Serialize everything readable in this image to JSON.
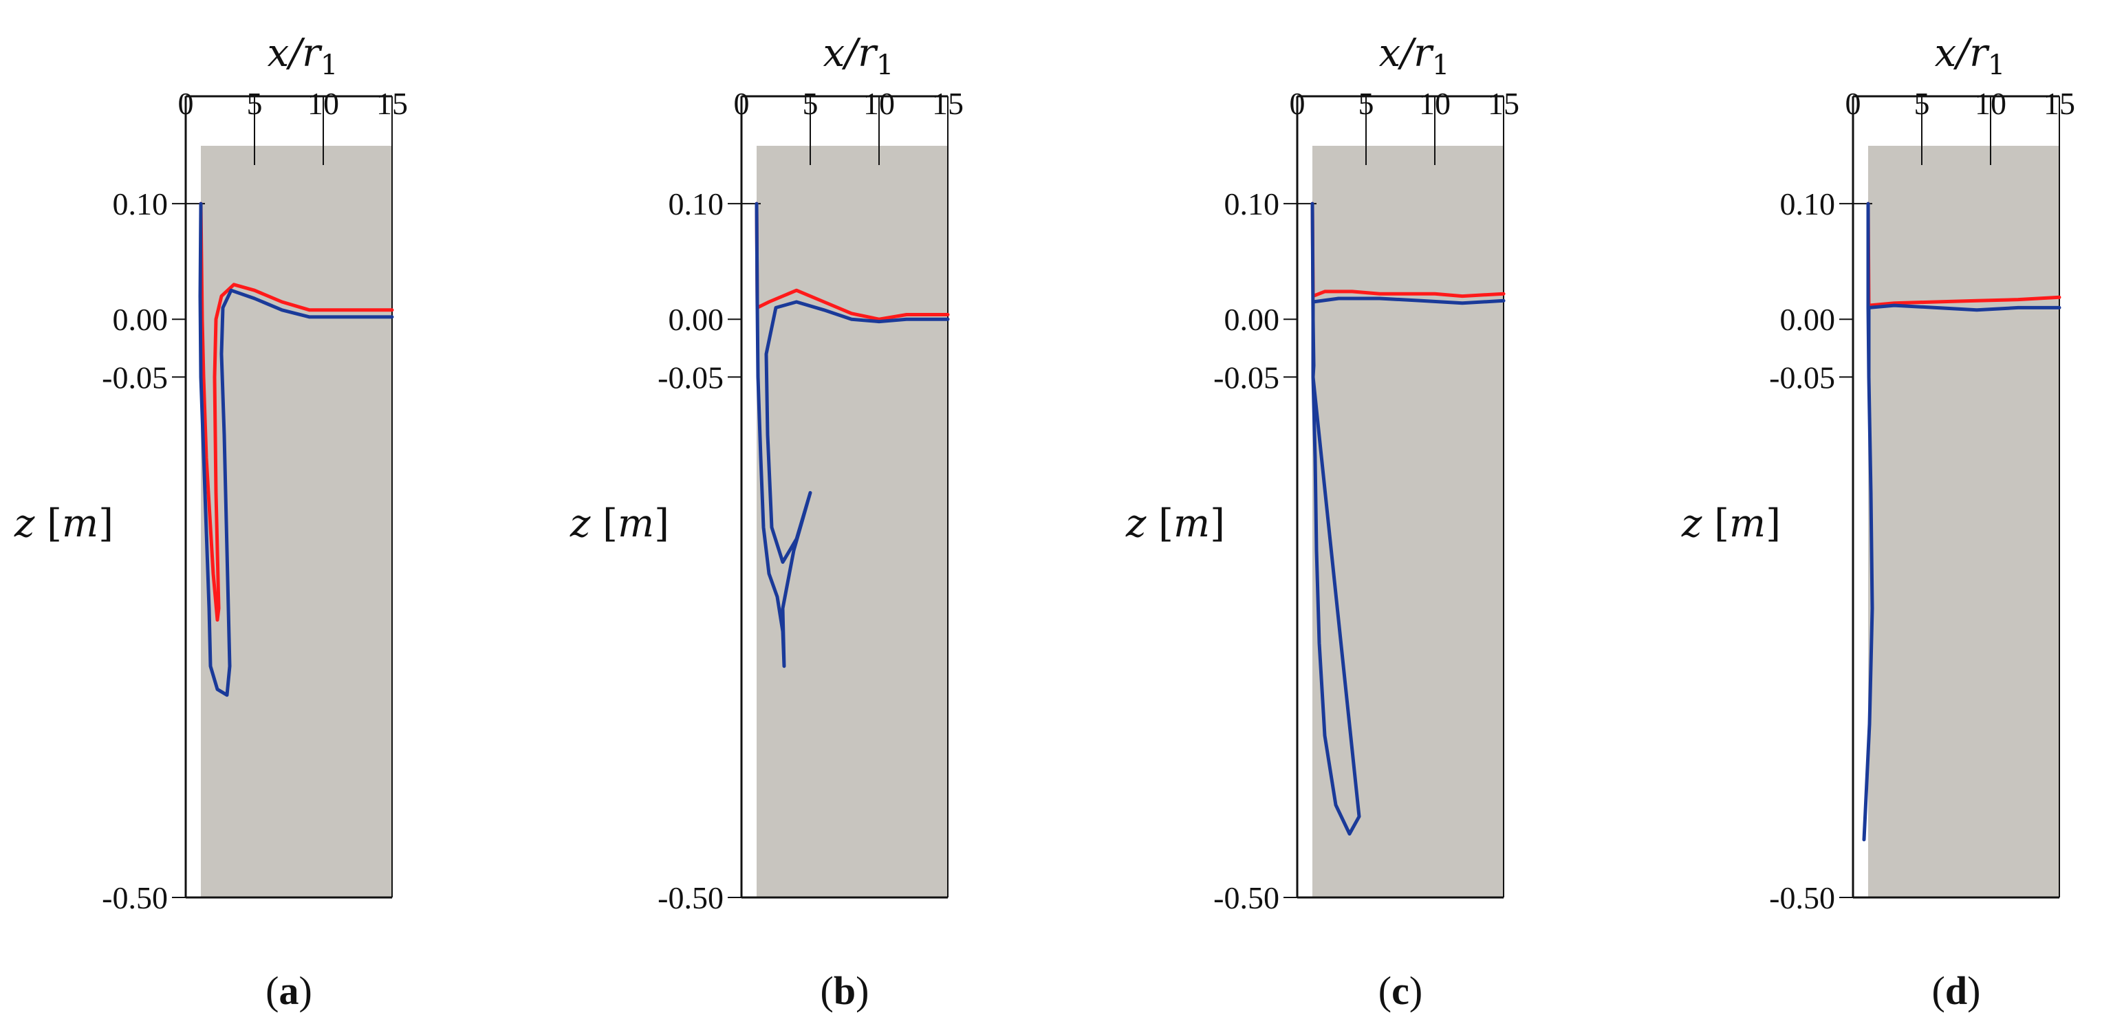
{
  "chart_data": [
    {
      "type": "line",
      "panel": "a",
      "caption": "(a)",
      "xlabel": "x/r1",
      "ylabel": "z [m]",
      "xticks": [
        "0",
        "5",
        "10",
        "15"
      ],
      "yticks": [
        "0.10",
        "0.00",
        "-0.05",
        "-0.50"
      ],
      "xlim": [
        0,
        15
      ],
      "ylim": [
        -0.5,
        0.15
      ],
      "background_color": "#c8c5bf",
      "series": [
        {
          "color": "#ff1a1a",
          "points": [
            [
              1.1,
              0.1
            ],
            [
              1.2,
              0.0
            ],
            [
              1.3,
              -0.05
            ],
            [
              1.5,
              -0.12
            ],
            [
              1.8,
              -0.18
            ],
            [
              2.0,
              -0.22
            ],
            [
              2.3,
              -0.26
            ],
            [
              2.4,
              -0.25
            ],
            [
              2.2,
              -0.15
            ],
            [
              2.1,
              -0.05
            ],
            [
              2.2,
              0.0
            ],
            [
              2.6,
              0.02
            ],
            [
              3.5,
              0.03
            ],
            [
              5,
              0.025
            ],
            [
              7,
              0.015
            ],
            [
              9,
              0.008
            ],
            [
              12,
              0.008
            ],
            [
              15,
              0.008
            ]
          ]
        },
        {
          "color": "#1a3a99",
          "points": [
            [
              1.1,
              0.1
            ],
            [
              1.05,
              0.02
            ],
            [
              1.1,
              -0.05
            ],
            [
              1.4,
              -0.15
            ],
            [
              1.7,
              -0.25
            ],
            [
              1.8,
              -0.3
            ],
            [
              2.3,
              -0.32
            ],
            [
              3.0,
              -0.325
            ],
            [
              3.2,
              -0.3
            ],
            [
              3.0,
              -0.2
            ],
            [
              2.8,
              -0.1
            ],
            [
              2.6,
              -0.03
            ],
            [
              2.7,
              0.01
            ],
            [
              3.3,
              0.025
            ],
            [
              5,
              0.018
            ],
            [
              7,
              0.008
            ],
            [
              9,
              0.002
            ],
            [
              12,
              0.002
            ],
            [
              15,
              0.002
            ]
          ]
        }
      ]
    },
    {
      "type": "line",
      "panel": "b",
      "caption": "(b)",
      "xlabel": "x/r1",
      "ylabel": "z [m]",
      "xticks": [
        "0",
        "5",
        "10",
        "15"
      ],
      "yticks": [
        "0.10",
        "0.00",
        "-0.05",
        "-0.50"
      ],
      "xlim": [
        0,
        15
      ],
      "ylim": [
        -0.5,
        0.15
      ],
      "background_color": "#c8c5bf",
      "series": [
        {
          "color": "#ff1a1a",
          "points": [
            [
              1.1,
              0.1
            ],
            [
              1.15,
              0.01
            ],
            [
              2,
              0.015
            ],
            [
              4,
              0.025
            ],
            [
              6,
              0.015
            ],
            [
              8,
              0.005
            ],
            [
              10,
              0.0
            ],
            [
              12,
              0.004
            ],
            [
              15,
              0.004
            ]
          ]
        },
        {
          "color": "#1a3a99",
          "points": [
            [
              1.1,
              0.1
            ],
            [
              1.15,
              0.01
            ],
            [
              1.2,
              -0.05
            ],
            [
              1.4,
              -0.12
            ],
            [
              1.6,
              -0.18
            ],
            [
              2.0,
              -0.22
            ],
            [
              2.6,
              -0.24
            ],
            [
              3.0,
              -0.27
            ],
            [
              3.1,
              -0.3
            ],
            [
              3.0,
              -0.25
            ],
            [
              3.8,
              -0.2
            ],
            [
              5,
              -0.15
            ],
            [
              4,
              -0.19
            ],
            [
              3,
              -0.21
            ],
            [
              2.2,
              -0.18
            ],
            [
              1.9,
              -0.1
            ],
            [
              1.8,
              -0.03
            ],
            [
              2.5,
              0.01
            ],
            [
              4,
              0.015
            ],
            [
              6,
              0.008
            ],
            [
              8,
              0.0
            ],
            [
              10,
              -0.002
            ],
            [
              12,
              0.0
            ],
            [
              15,
              0.0
            ]
          ]
        }
      ]
    },
    {
      "type": "line",
      "panel": "c",
      "caption": "(c)",
      "xlabel": "x/r1",
      "ylabel": "z [m]",
      "xticks": [
        "0",
        "5",
        "10",
        "15"
      ],
      "yticks": [
        "0.10",
        "0.00",
        "-0.05",
        "-0.50"
      ],
      "xlim": [
        0,
        15
      ],
      "ylim": [
        -0.5,
        0.15
      ],
      "background_color": "#c8c5bf",
      "series": [
        {
          "color": "#ff1a1a",
          "points": [
            [
              1.1,
              0.1
            ],
            [
              1.15,
              0.02
            ],
            [
              2,
              0.024
            ],
            [
              4,
              0.024
            ],
            [
              6,
              0.022
            ],
            [
              8,
              0.022
            ],
            [
              10,
              0.022
            ],
            [
              12,
              0.02
            ],
            [
              15,
              0.022
            ]
          ]
        },
        {
          "color": "#1a3a99",
          "points": [
            [
              1.1,
              0.1
            ],
            [
              1.15,
              0.0
            ],
            [
              1.2,
              -0.04
            ],
            [
              1.15,
              -0.05
            ],
            [
              1.3,
              -0.12
            ],
            [
              1.4,
              -0.2
            ],
            [
              1.6,
              -0.28
            ],
            [
              2,
              -0.36
            ],
            [
              2.8,
              -0.42
            ],
            [
              3.8,
              -0.445
            ],
            [
              4.5,
              -0.43
            ],
            [
              1.15,
              -0.05
            ],
            [
              1.15,
              0.015
            ],
            [
              3,
              0.018
            ],
            [
              6,
              0.018
            ],
            [
              9,
              0.016
            ],
            [
              12,
              0.014
            ],
            [
              15,
              0.016
            ]
          ]
        }
      ]
    },
    {
      "type": "line",
      "panel": "d",
      "caption": "(d)",
      "xlabel": "x/r1",
      "ylabel": "z [m]",
      "xticks": [
        "0",
        "5",
        "10",
        "15"
      ],
      "yticks": [
        "0.10",
        "0.00",
        "-0.05",
        "-0.50"
      ],
      "xlim": [
        0,
        15
      ],
      "ylim": [
        -0.5,
        0.15
      ],
      "background_color": "#c8c5bf",
      "series": [
        {
          "color": "#ff1a1a",
          "points": [
            [
              1.1,
              0.1
            ],
            [
              1.15,
              0.012
            ],
            [
              3,
              0.014
            ],
            [
              6,
              0.015
            ],
            [
              9,
              0.016
            ],
            [
              12,
              0.017
            ],
            [
              15,
              0.019
            ]
          ]
        },
        {
          "color": "#1a3a99",
          "points": [
            [
              1.1,
              0.1
            ],
            [
              1.1,
              0.01
            ],
            [
              1.15,
              -0.05
            ],
            [
              1.3,
              -0.15
            ],
            [
              1.4,
              -0.25
            ],
            [
              1.2,
              -0.35
            ],
            [
              0.8,
              -0.45
            ],
            [
              1.2,
              -0.35
            ],
            [
              1.4,
              -0.25
            ],
            [
              1.3,
              -0.15
            ],
            [
              1.15,
              -0.05
            ],
            [
              1.15,
              0.01
            ],
            [
              3,
              0.012
            ],
            [
              6,
              0.01
            ],
            [
              9,
              0.008
            ],
            [
              12,
              0.01
            ],
            [
              15,
              0.01
            ]
          ]
        }
      ]
    }
  ]
}
